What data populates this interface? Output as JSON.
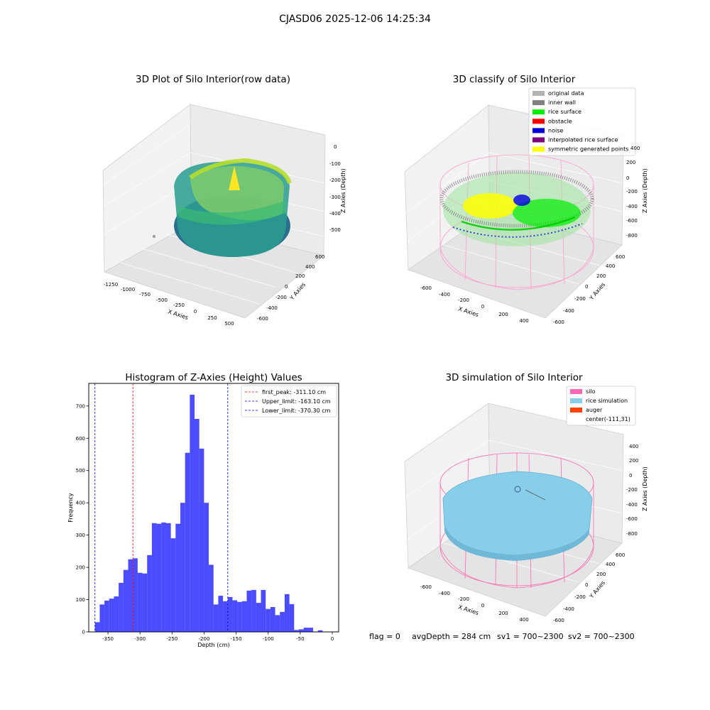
{
  "figure": {
    "suptitle": "CJASD06 2025-12-06 14:25:34",
    "status_line": {
      "flag": "flag = 0",
      "avg_depth": "avgDepth = 284 cm",
      "sv1": "sv1 = 700~2300",
      "sv2": "sv2 = 700~2300"
    }
  },
  "panels": {
    "raw": {
      "title": "3D Plot of Silo Interior(row data)",
      "xlabel": "X Axies",
      "ylabel": "Y Axies",
      "zlabel": "Z Axies (Depth)",
      "xticks": [
        "-1250",
        "-1000",
        "-750",
        "-500",
        "-250",
        "0",
        "250",
        "500"
      ],
      "yticks": [
        "-600",
        "-400",
        "-200",
        "0",
        "200",
        "400",
        "600"
      ],
      "zticks": [
        "0",
        "-100",
        "-200",
        "-300",
        "-400",
        "-500"
      ]
    },
    "classify": {
      "title": "3D classify of Silo Interior",
      "xlabel": "X Axies",
      "ylabel": "Y Axies",
      "zlabel": "Z Axies (Depth)",
      "xticks": [
        "-600",
        "-400",
        "-200",
        "0",
        "200",
        "400"
      ],
      "yticks": [
        "-600",
        "-400",
        "-200",
        "0",
        "200",
        "400",
        "600"
      ],
      "zticks": [
        "200",
        "0",
        "-200",
        "-400",
        "-600",
        "-800"
      ],
      "zticks_top": [
        "400",
        "200"
      ],
      "legend": [
        {
          "label": "original data",
          "color": "#b3b3b3"
        },
        {
          "label": "inner wall",
          "color": "#808080"
        },
        {
          "label": "rice surface",
          "color": "#00ee00"
        },
        {
          "label": "obstacle",
          "color": "#ff0000"
        },
        {
          "label": "noise",
          "color": "#0000dd"
        },
        {
          "label": "interpolated rice surface",
          "color": "#800080"
        },
        {
          "label": "symmetric generated points",
          "color": "#ffff00"
        }
      ]
    },
    "simulation": {
      "title": "3D simulation of Silo Interior",
      "xlabel": "X Axies",
      "ylabel": "Y Axies",
      "zlabel": "Z Axies (Depth)",
      "xticks": [
        "-600",
        "-400",
        "-200",
        "0",
        "200",
        "400"
      ],
      "yticks": [
        "-600",
        "-400",
        "-200",
        "0",
        "200",
        "400",
        "600"
      ],
      "zticks": [
        "400",
        "200",
        "0",
        "-200",
        "-400",
        "-600",
        "-800"
      ],
      "legend": [
        {
          "label": "silo",
          "color": "#ff69b4"
        },
        {
          "label": "rice simulation",
          "color": "#87ceeb"
        },
        {
          "label": "auger",
          "color": "#ff4500"
        },
        {
          "label": "center(-111,31)",
          "color": ""
        }
      ]
    }
  },
  "chart_data": {
    "type": "bar",
    "title": "Histogram of Z-Axies (Height) Values",
    "xlabel": "Depth (cm)",
    "ylabel": "Frequency",
    "xlim": [
      -380,
      10
    ],
    "ylim": [
      0,
      770
    ],
    "xticks": [
      -350,
      -300,
      -250,
      -200,
      -150,
      -100,
      -50,
      0
    ],
    "yticks": [
      0,
      100,
      200,
      300,
      400,
      500,
      600,
      700
    ],
    "bar_color": "#0000ff",
    "bin_start": -370.3,
    "bin_width": 7.4,
    "values": [
      30,
      85,
      97,
      103,
      110,
      152,
      192,
      225,
      228,
      183,
      181,
      238,
      337,
      335,
      339,
      337,
      290,
      335,
      400,
      555,
      735,
      660,
      568,
      400,
      208,
      85,
      112,
      95,
      108,
      98,
      93,
      95,
      128,
      130,
      90,
      130,
      71,
      77,
      52,
      62,
      117,
      86,
      6,
      8,
      13,
      13,
      0,
      5
    ],
    "vlines": [
      {
        "label": "first_peak: -311.10 cm",
        "x": -311.1,
        "color": "#ff0000"
      },
      {
        "label": "Upper_limit: -163.10 cm",
        "x": -163.1,
        "color": "#0000ff"
      },
      {
        "label": "Lower_limit: -370.30 cm",
        "x": -370.3,
        "color": "#0000ff"
      }
    ],
    "legend_position": "upper right"
  }
}
